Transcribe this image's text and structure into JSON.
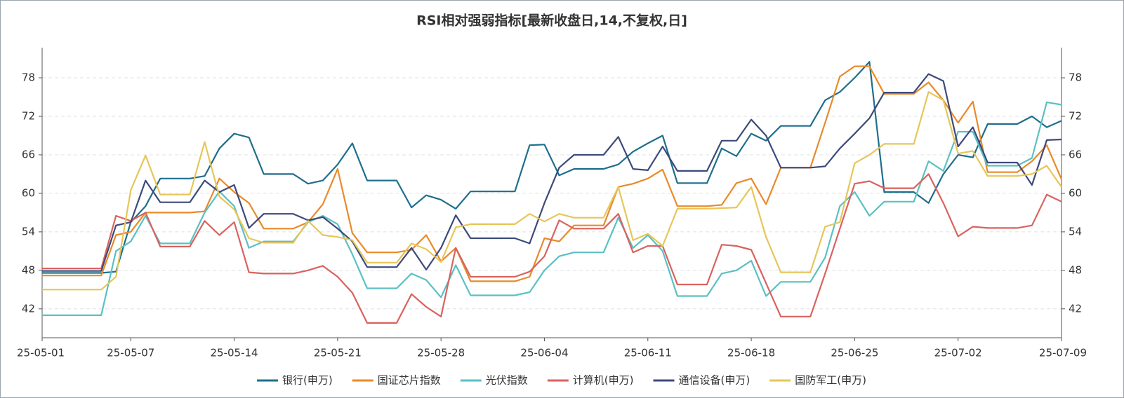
{
  "chart_data": {
    "type": "line",
    "title": "RSI相对强弱指标[最新收盘日,14,不复权,日]",
    "categories": [
      "25-05-01",
      null,
      null,
      null,
      null,
      null,
      "25-05-07",
      null,
      null,
      null,
      null,
      null,
      null,
      "25-05-14",
      null,
      null,
      null,
      null,
      null,
      null,
      "25-05-21",
      null,
      null,
      null,
      null,
      null,
      null,
      "25-05-28",
      null,
      null,
      null,
      null,
      null,
      null,
      "25-06-04",
      null,
      null,
      null,
      null,
      null,
      null,
      "25-06-11",
      null,
      null,
      null,
      null,
      null,
      null,
      "25-06-18",
      null,
      null,
      null,
      null,
      null,
      null,
      "25-06-25",
      null,
      null,
      null,
      null,
      null,
      null,
      "25-07-02",
      null,
      null,
      null,
      null,
      null,
      null,
      "25-07-09"
    ],
    "ylim": [
      37.5,
      82.7
    ],
    "yticks": [
      42,
      48,
      54,
      60,
      66,
      72,
      78
    ],
    "grid": true,
    "series": [
      {
        "name": "银行(申万)",
        "color": "#1f6e8c",
        "values": [
          47.6,
          47.6,
          47.6,
          47.6,
          47.6,
          47.8,
          55.5,
          58,
          62.3,
          62.3,
          62.3,
          62.7,
          67,
          69.3,
          68.7,
          63,
          63,
          63,
          61.5,
          62,
          64.5,
          67.8,
          62,
          62,
          62,
          57.8,
          59.7,
          59,
          57.6,
          60.3,
          60.3,
          60.3,
          60.3,
          67.5,
          67.6,
          62.8,
          63.8,
          63.8,
          63.8,
          64.5,
          66.5,
          67.8,
          69,
          61.6,
          61.6,
          61.6,
          67,
          65.8,
          69.3,
          68.2,
          70.5,
          70.5,
          70.5,
          74.5,
          75.8,
          78,
          80.5,
          60.2,
          60.2,
          60.2,
          58.5,
          63,
          66,
          65.6,
          70.8,
          70.8,
          70.8,
          72,
          70.3,
          71.3
        ]
      },
      {
        "name": "国证芯片指数",
        "color": "#e88a2a",
        "values": [
          47.2,
          47.2,
          47.2,
          47.2,
          47.2,
          53.5,
          54,
          57,
          57,
          57,
          57,
          57.2,
          62.3,
          60.2,
          58.5,
          54.5,
          54.5,
          54.5,
          55.5,
          58.3,
          63.8,
          53.8,
          50.8,
          50.8,
          50.8,
          51.2,
          53.5,
          49.4,
          51.5,
          46.3,
          46.3,
          46.3,
          46.3,
          47,
          53,
          52.5,
          55,
          55,
          55,
          61,
          61.5,
          62.3,
          63.7,
          58,
          58,
          58,
          58.2,
          61.6,
          62.3,
          58.3,
          64,
          64,
          64,
          71,
          78.2,
          79.8,
          79.8,
          75.5,
          75.5,
          75.5,
          77.3,
          74.5,
          71,
          74.3,
          63.3,
          63.3,
          63.3,
          65,
          67.5,
          62.2
        ]
      },
      {
        "name": "光伏指数",
        "color": "#5bc0c4",
        "values": [
          41,
          41,
          41,
          41,
          41,
          51,
          52.5,
          56.5,
          52.2,
          52.2,
          52.2,
          57,
          60.3,
          58,
          51.5,
          52.5,
          52.5,
          52.5,
          55.5,
          56.5,
          55.2,
          50.5,
          45.2,
          45.2,
          45.2,
          47.5,
          46.5,
          43.8,
          48.8,
          44.1,
          44.1,
          44.1,
          44.1,
          44.6,
          48,
          50.2,
          50.8,
          50.8,
          50.8,
          56.2,
          51.5,
          53.5,
          51,
          44,
          44,
          44,
          47.5,
          48,
          49.5,
          44,
          46.2,
          46.2,
          46.2,
          50,
          58,
          60.2,
          56.5,
          58.7,
          58.7,
          58.7,
          65,
          63.5,
          69.6,
          69.6,
          64.3,
          64.3,
          64.3,
          65.5,
          74.2,
          73.8
        ]
      },
      {
        "name": "计算机(申万)",
        "color": "#d9625e",
        "values": [
          48.3,
          48.3,
          48.3,
          48.3,
          48.3,
          56.5,
          55.7,
          57,
          51.7,
          51.7,
          51.7,
          55.7,
          53.5,
          55.5,
          47.7,
          47.5,
          47.5,
          47.5,
          48,
          48.7,
          47,
          44.5,
          39.8,
          39.8,
          39.8,
          44.3,
          42.3,
          40.8,
          51.5,
          47,
          47,
          47,
          47,
          47.8,
          50.2,
          55.8,
          54.5,
          54.5,
          54.5,
          56.8,
          50.8,
          51.8,
          51.8,
          45.8,
          45.8,
          45.8,
          52,
          51.8,
          51.2,
          46,
          40.8,
          40.8,
          40.8,
          47.5,
          54.5,
          61.5,
          61.9,
          60.8,
          60.8,
          60.8,
          63,
          58.5,
          53.3,
          54.8,
          54.6,
          54.6,
          54.6,
          55,
          59.8,
          58.7
        ]
      },
      {
        "name": "通信设备(申万)",
        "color": "#3d4a7a",
        "values": [
          47.9,
          47.9,
          47.9,
          47.9,
          47.9,
          55,
          55.5,
          62,
          58.6,
          58.6,
          58.6,
          62,
          60.2,
          61.3,
          54.6,
          56.8,
          56.8,
          56.8,
          55.8,
          56.3,
          54.5,
          52.5,
          48.5,
          48.5,
          48.5,
          51.5,
          48.1,
          51.5,
          56.6,
          53,
          53,
          53,
          53,
          52.2,
          58.5,
          64,
          66,
          66,
          66,
          68.8,
          63.8,
          63.6,
          67.3,
          63.5,
          63.5,
          63.5,
          68.2,
          68.2,
          71.5,
          69,
          64,
          64,
          64,
          64.2,
          67,
          69.3,
          71.7,
          75.7,
          75.7,
          75.7,
          78.6,
          77.5,
          67.3,
          70.3,
          64.8,
          64.8,
          64.8,
          61.3,
          68.3,
          68.4
        ]
      },
      {
        "name": "国防军工(申万)",
        "color": "#e6c65a",
        "values": [
          45,
          45,
          45,
          45,
          45,
          47,
          60.5,
          65.9,
          59.8,
          59.8,
          59.8,
          68,
          59.5,
          57.5,
          53,
          52.3,
          52.3,
          52.3,
          55.7,
          53.5,
          53.2,
          52.7,
          49.2,
          49.2,
          49.2,
          52.2,
          51.3,
          49.3,
          54.7,
          55.2,
          55.2,
          55.2,
          55.2,
          56.8,
          55.6,
          56.8,
          56.2,
          56.2,
          56.2,
          61,
          52.7,
          53.7,
          51.8,
          57.6,
          57.6,
          57.6,
          57.7,
          57.8,
          61,
          53.2,
          47.7,
          47.7,
          47.7,
          54.8,
          55.5,
          64.7,
          66,
          67.7,
          67.7,
          67.7,
          75.8,
          74.5,
          66.2,
          66.6,
          62.7,
          62.7,
          62.7,
          63,
          64.3,
          61
        ]
      }
    ]
  }
}
